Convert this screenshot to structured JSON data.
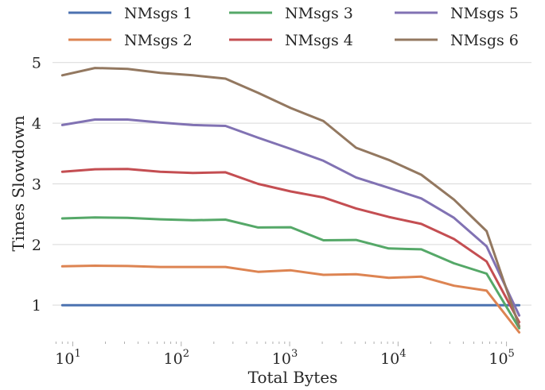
{
  "chart_data": {
    "type": "line",
    "xlabel": "Total Bytes",
    "ylabel": "Times Slowdown",
    "x_scale": "log",
    "xlim": [
      6.5,
      170000
    ],
    "ylim": [
      0.4,
      5.35
    ],
    "grid": "horizontal",
    "legend_position": "top",
    "legend_columns": 3,
    "x_ticks": [
      {
        "base": "10",
        "exp": "1",
        "value": 10
      },
      {
        "base": "10",
        "exp": "2",
        "value": 100
      },
      {
        "base": "10",
        "exp": "3",
        "value": 1000
      },
      {
        "base": "10",
        "exp": "4",
        "value": 10000
      },
      {
        "base": "10",
        "exp": "5",
        "value": 100000
      }
    ],
    "y_ticks": [
      {
        "label": "1",
        "value": 1
      },
      {
        "label": "2",
        "value": 2
      },
      {
        "label": "3",
        "value": 3
      },
      {
        "label": "4",
        "value": 4
      },
      {
        "label": "5",
        "value": 5
      }
    ],
    "x": [
      8,
      16,
      32,
      64,
      128,
      256,
      512,
      1024,
      2048,
      4096,
      8192,
      16384,
      32768,
      65536,
      131072
    ],
    "series": [
      {
        "name": "NMsgs 1",
        "color": "#4c72b0",
        "values": [
          1.0,
          1.0,
          1.0,
          1.0,
          1.0,
          1.0,
          1.0,
          1.0,
          1.0,
          1.0,
          1.0,
          1.0,
          1.0,
          1.0,
          1.0
        ]
      },
      {
        "name": "NMsgs 2",
        "color": "#dd8452",
        "values": [
          1.64,
          1.65,
          1.645,
          1.63,
          1.63,
          1.63,
          1.55,
          1.575,
          1.5,
          1.51,
          1.45,
          1.47,
          1.32,
          1.24,
          0.55
        ]
      },
      {
        "name": "NMsgs 3",
        "color": "#55a868",
        "values": [
          2.43,
          2.445,
          2.44,
          2.415,
          2.4,
          2.41,
          2.28,
          2.285,
          2.07,
          2.075,
          1.935,
          1.92,
          1.69,
          1.52,
          0.62
        ]
      },
      {
        "name": "NMsgs 4",
        "color": "#c44e52",
        "values": [
          3.2,
          3.24,
          3.245,
          3.2,
          3.18,
          3.19,
          3.0,
          2.875,
          2.775,
          2.595,
          2.455,
          2.34,
          2.09,
          1.72,
          0.72
        ]
      },
      {
        "name": "NMsgs 5",
        "color": "#8172b3",
        "values": [
          3.97,
          4.06,
          4.06,
          4.01,
          3.97,
          3.955,
          3.76,
          3.575,
          3.38,
          3.105,
          2.935,
          2.76,
          2.44,
          1.97,
          0.83
        ]
      },
      {
        "name": "NMsgs 6",
        "color": "#937860",
        "values": [
          4.79,
          4.91,
          4.895,
          4.83,
          4.79,
          4.735,
          4.5,
          4.25,
          4.035,
          3.595,
          3.395,
          3.15,
          2.74,
          2.22,
          0.65
        ]
      }
    ]
  }
}
